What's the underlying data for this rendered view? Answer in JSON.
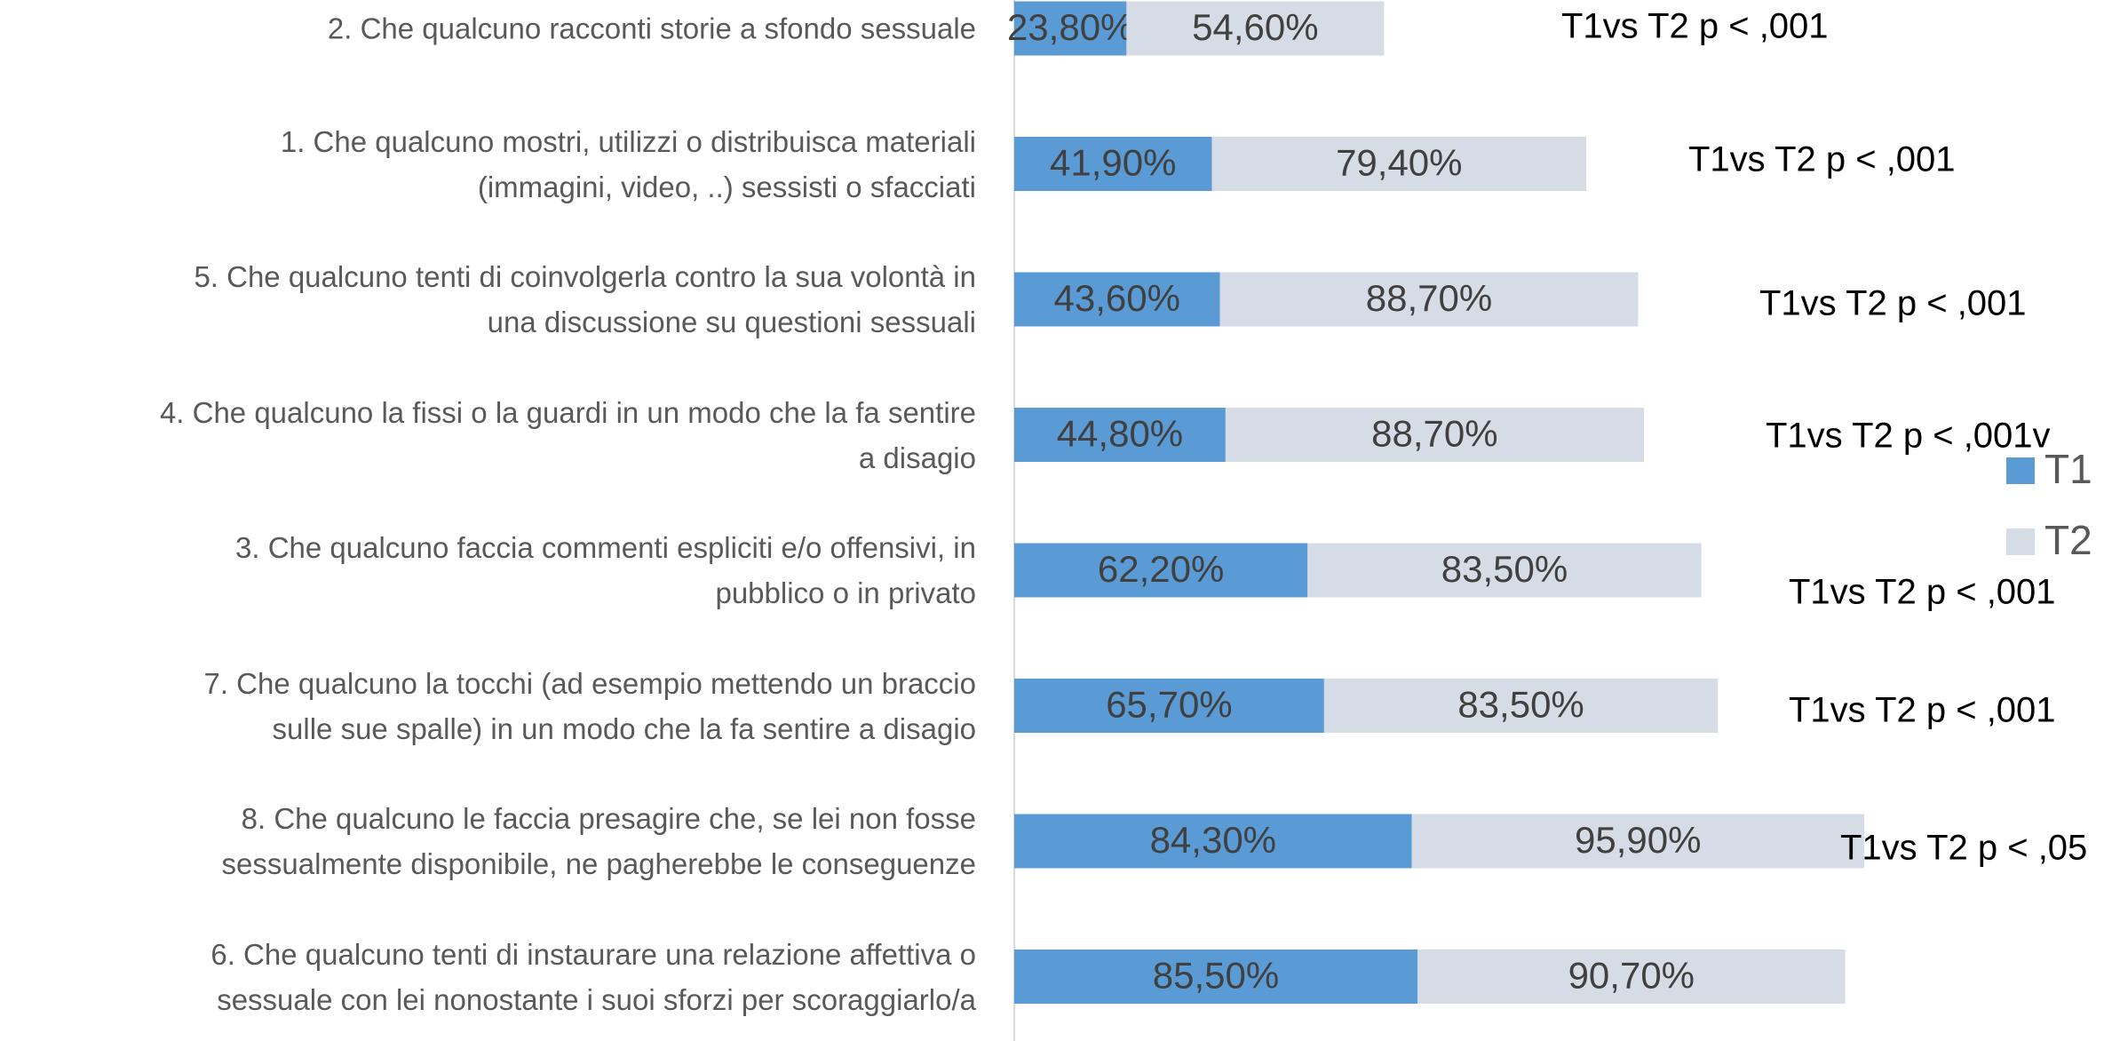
{
  "chart_data": {
    "type": "stacked_bar_horizontal",
    "categories": [
      "2. Che qualcuno racconti storie a sfondo sessuale",
      "1. Che qualcuno mostri, utilizzi o distribuisca materiali\n(immagini, video, ..) sessisti o sfacciati",
      "5. Che qualcuno tenti di coinvolgerla contro la sua volontà in\nuna discussione su questioni sessuali",
      "4. Che qualcuno la fissi o la guardi in un modo che la fa sentire\na disagio",
      "3. Che qualcuno faccia commenti espliciti e/o offensivi, in\npubblico o in privato",
      "7. Che qualcuno la tocchi (ad esempio mettendo un braccio\nsulle sue spalle) in un modo che la fa sentire a disagio",
      "8. Che qualcuno le faccia presagire che, se lei non fosse\nsessualmente disponibile, ne pagherebbe le conseguenze",
      "6. Che qualcuno tenti di instaurare una relazione affettiva o\nsessuale con lei nonostante i suoi sforzi per scoraggiarlo/a"
    ],
    "series": [
      {
        "name": "T1",
        "color": "#5b9bd5",
        "values": [
          23.8,
          41.9,
          43.6,
          44.8,
          62.2,
          65.7,
          84.3,
          85.5
        ],
        "value_labels": [
          "23,80%",
          "41,90%",
          "43,60%",
          "44,80%",
          "62,20%",
          "65,70%",
          "84,30%",
          "85,50%"
        ]
      },
      {
        "name": "T2",
        "color": "#d6dce5",
        "values": [
          54.6,
          79.4,
          88.7,
          88.7,
          83.5,
          83.5,
          95.9,
          90.7
        ],
        "value_labels": [
          "54,60%",
          "79,40%",
          "88,70%",
          "88,70%",
          "83,50%",
          "83,50%",
          "95,90%",
          "90,70%"
        ]
      }
    ],
    "annotations": [
      "T1vs T2 p < ,001",
      "T1vs T2 p < ,001",
      "T1vs T2 p < ,001",
      "T1vs T2 p < ,001v",
      "T1vs T2 p < ,001",
      "T1vs T2 p < ,001",
      "T1vs T2 p < ,05"
    ],
    "legend": "right"
  }
}
